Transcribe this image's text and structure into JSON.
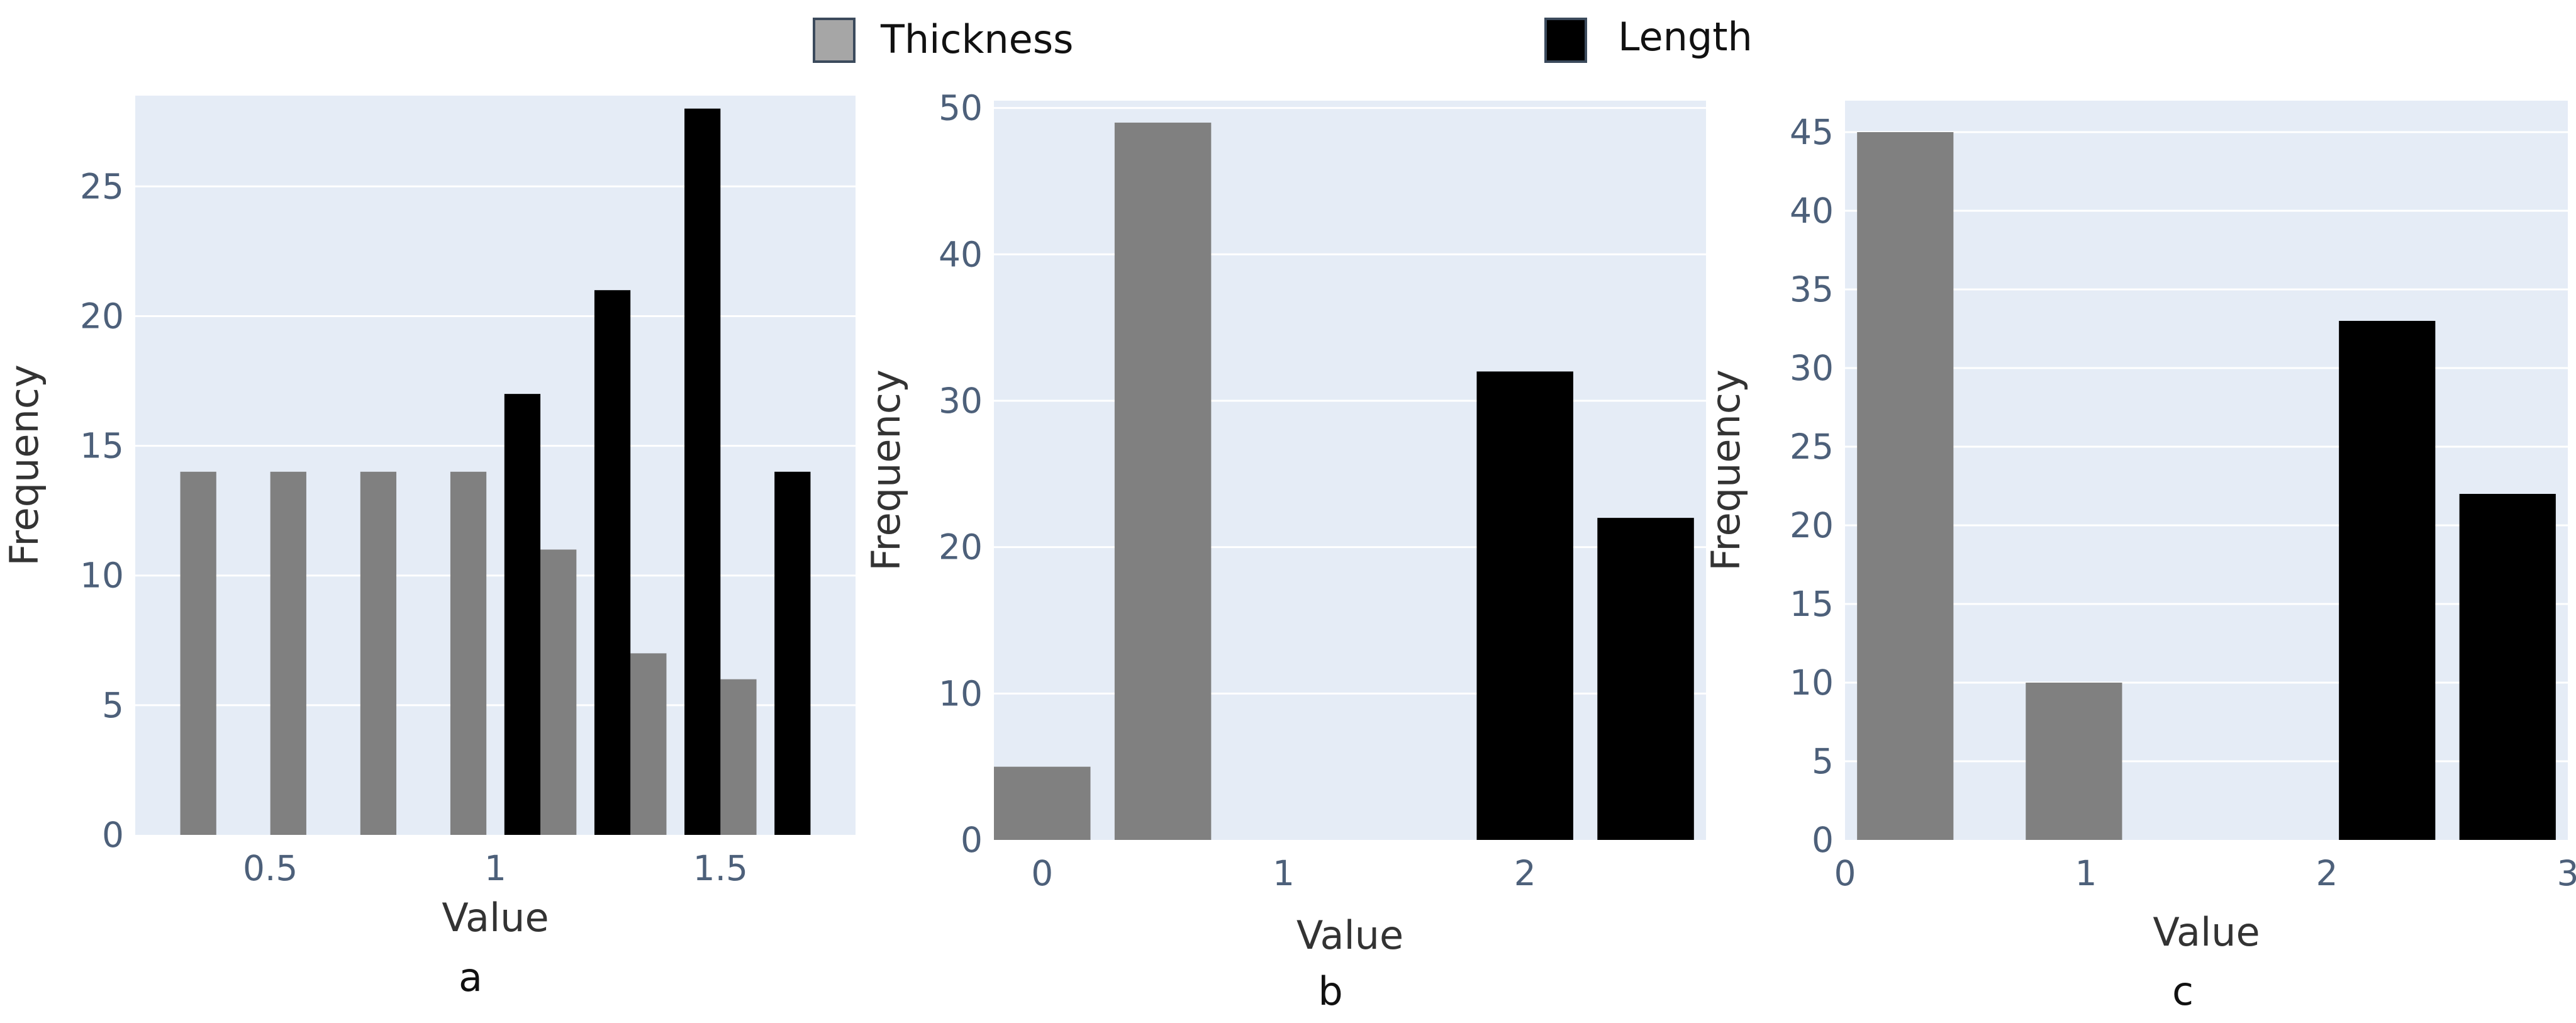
{
  "legend": [
    {
      "name": "Thickness",
      "color": "#808080",
      "swatch": "#a6a6a6"
    },
    {
      "name": "Length",
      "color": "#000000",
      "swatch": "#000000"
    }
  ],
  "chart_data": [
    {
      "type": "bar",
      "panel_label": "a",
      "xlabel": "Value",
      "ylabel": "Frequency",
      "xlim": [
        0.2,
        1.8
      ],
      "ylim": [
        0,
        28.5
      ],
      "xticks": [
        {
          "value": 0.5,
          "label": "0.5"
        },
        {
          "value": 1,
          "label": "1"
        },
        {
          "value": 1.5,
          "label": "1.5"
        }
      ],
      "yticks": [
        {
          "value": 0,
          "label": "0"
        },
        {
          "value": 5,
          "label": "5"
        },
        {
          "value": 10,
          "label": "10"
        },
        {
          "value": 15,
          "label": "15"
        },
        {
          "value": 20,
          "label": "20"
        },
        {
          "value": 25,
          "label": "25"
        }
      ],
      "bar_width": 0.08,
      "grid": true,
      "series": [
        {
          "name": "Thickness",
          "color": "#808080",
          "x": [
            0.34,
            0.54,
            0.74,
            0.94,
            1.14,
            1.34,
            1.54
          ],
          "y": [
            14,
            14,
            14,
            14,
            11,
            7,
            6
          ]
        },
        {
          "name": "Length",
          "color": "#000000",
          "x": [
            1.06,
            1.26,
            1.46,
            1.66
          ],
          "y": [
            17,
            21,
            28,
            14
          ]
        }
      ]
    },
    {
      "type": "bar",
      "panel_label": "b",
      "xlabel": "Value",
      "ylabel": "Frequency",
      "xlim": [
        -0.2,
        2.75
      ],
      "ylim": [
        0,
        50.5
      ],
      "xticks": [
        {
          "value": 0,
          "label": "0"
        },
        {
          "value": 1,
          "label": "1"
        },
        {
          "value": 2,
          "label": "2"
        }
      ],
      "yticks": [
        {
          "value": 0,
          "label": "0"
        },
        {
          "value": 10,
          "label": "10"
        },
        {
          "value": 20,
          "label": "20"
        },
        {
          "value": 30,
          "label": "30"
        },
        {
          "value": 40,
          "label": "40"
        },
        {
          "value": 50,
          "label": "50"
        }
      ],
      "bar_width": 0.4,
      "grid": true,
      "series": [
        {
          "name": "Thickness",
          "color": "#808080",
          "x": [
            0,
            0.5
          ],
          "y": [
            5,
            49
          ]
        },
        {
          "name": "Length",
          "color": "#000000",
          "x": [
            2,
            2.5
          ],
          "y": [
            32,
            22
          ]
        }
      ]
    },
    {
      "type": "bar",
      "panel_label": "c",
      "xlabel": "Value",
      "ylabel": "Frequency",
      "xlim": [
        0,
        3
      ],
      "ylim": [
        0,
        47
      ],
      "xticks": [
        {
          "value": 0,
          "label": "0"
        },
        {
          "value": 1,
          "label": "1"
        },
        {
          "value": 2,
          "label": "2"
        },
        {
          "value": 3,
          "label": "3"
        }
      ],
      "yticks": [
        {
          "value": 0,
          "label": "0"
        },
        {
          "value": 5,
          "label": "5"
        },
        {
          "value": 10,
          "label": "10"
        },
        {
          "value": 15,
          "label": "15"
        },
        {
          "value": 20,
          "label": "20"
        },
        {
          "value": 25,
          "label": "25"
        },
        {
          "value": 30,
          "label": "30"
        },
        {
          "value": 35,
          "label": "35"
        },
        {
          "value": 40,
          "label": "40"
        },
        {
          "value": 45,
          "label": "45"
        }
      ],
      "bar_width": 0.4,
      "grid": true,
      "series": [
        {
          "name": "Thickness",
          "color": "#808080",
          "x": [
            0.25,
            0.95
          ],
          "y": [
            45,
            10
          ]
        },
        {
          "name": "Length",
          "color": "#000000",
          "x": [
            2.25,
            2.75
          ],
          "y": [
            33,
            22
          ]
        }
      ]
    }
  ]
}
